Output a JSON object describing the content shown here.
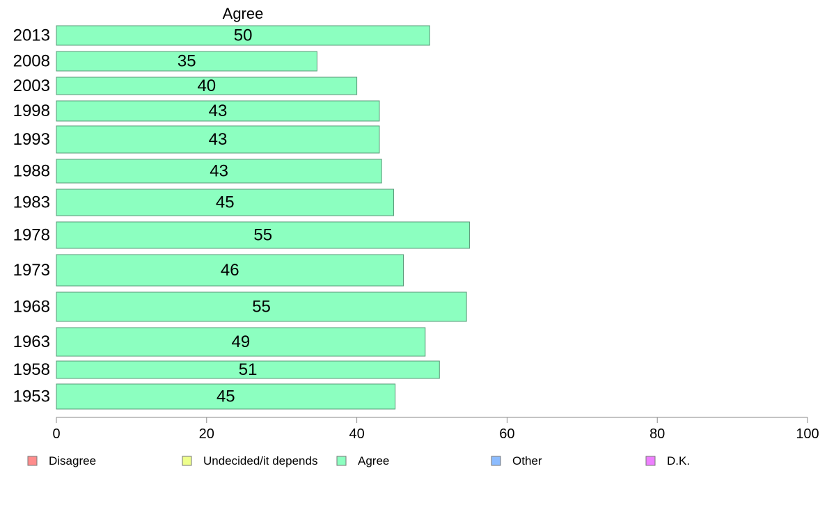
{
  "chart_data": {
    "type": "bar",
    "orientation": "horizontal",
    "panel_title": "Agree",
    "categories": [
      "2013",
      "2008",
      "2003",
      "1998",
      "1993",
      "1988",
      "1983",
      "1978",
      "1973",
      "1968",
      "1963",
      "1958",
      "1953"
    ],
    "series": [
      {
        "name": "Agree",
        "color": "#8cffc0",
        "values": [
          49.7,
          34.7,
          40.0,
          43.0,
          43.0,
          43.3,
          44.9,
          55.0,
          46.2,
          54.6,
          49.1,
          51.0,
          45.1
        ]
      }
    ],
    "data_labels": [
      "50",
      "35",
      "40",
      "43",
      "43",
      "43",
      "45",
      "55",
      "46",
      "55",
      "49",
      "51",
      "45"
    ],
    "xlim": [
      0,
      100
    ],
    "xticks": [
      0,
      20,
      40,
      60,
      80,
      100
    ],
    "legend": {
      "placement": "bottom",
      "items": [
        {
          "label": "Disagree",
          "color": "#ff8c8c"
        },
        {
          "label": "Undecided/it depends",
          "color": "#eeff8c"
        },
        {
          "label": "Agree",
          "color": "#8cffc0"
        },
        {
          "label": "Other",
          "color": "#8cbcff"
        },
        {
          "label": "D.K.",
          "color": "#ee80ff"
        }
      ]
    }
  }
}
